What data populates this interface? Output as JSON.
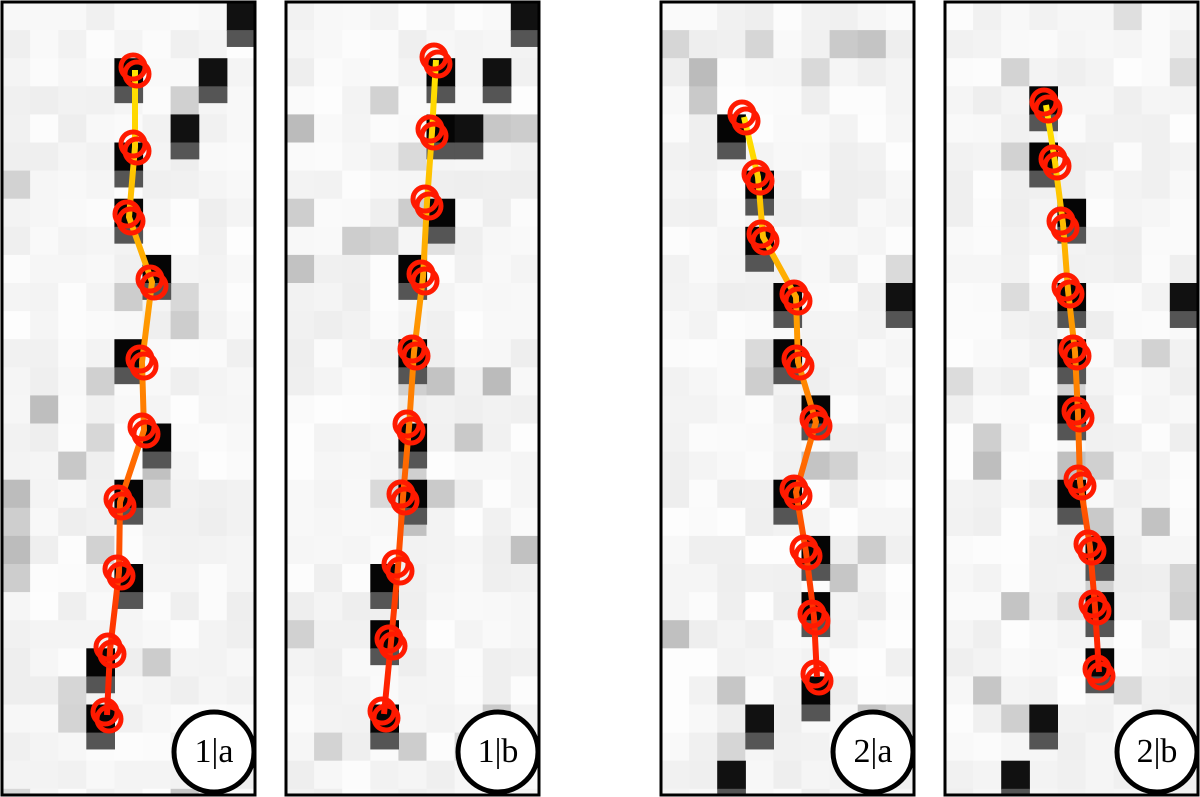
{
  "panels": [
    {
      "label": "1|a"
    },
    {
      "label": "1|b"
    },
    {
      "label": "2|a"
    },
    {
      "label": "2|b"
    }
  ]
}
